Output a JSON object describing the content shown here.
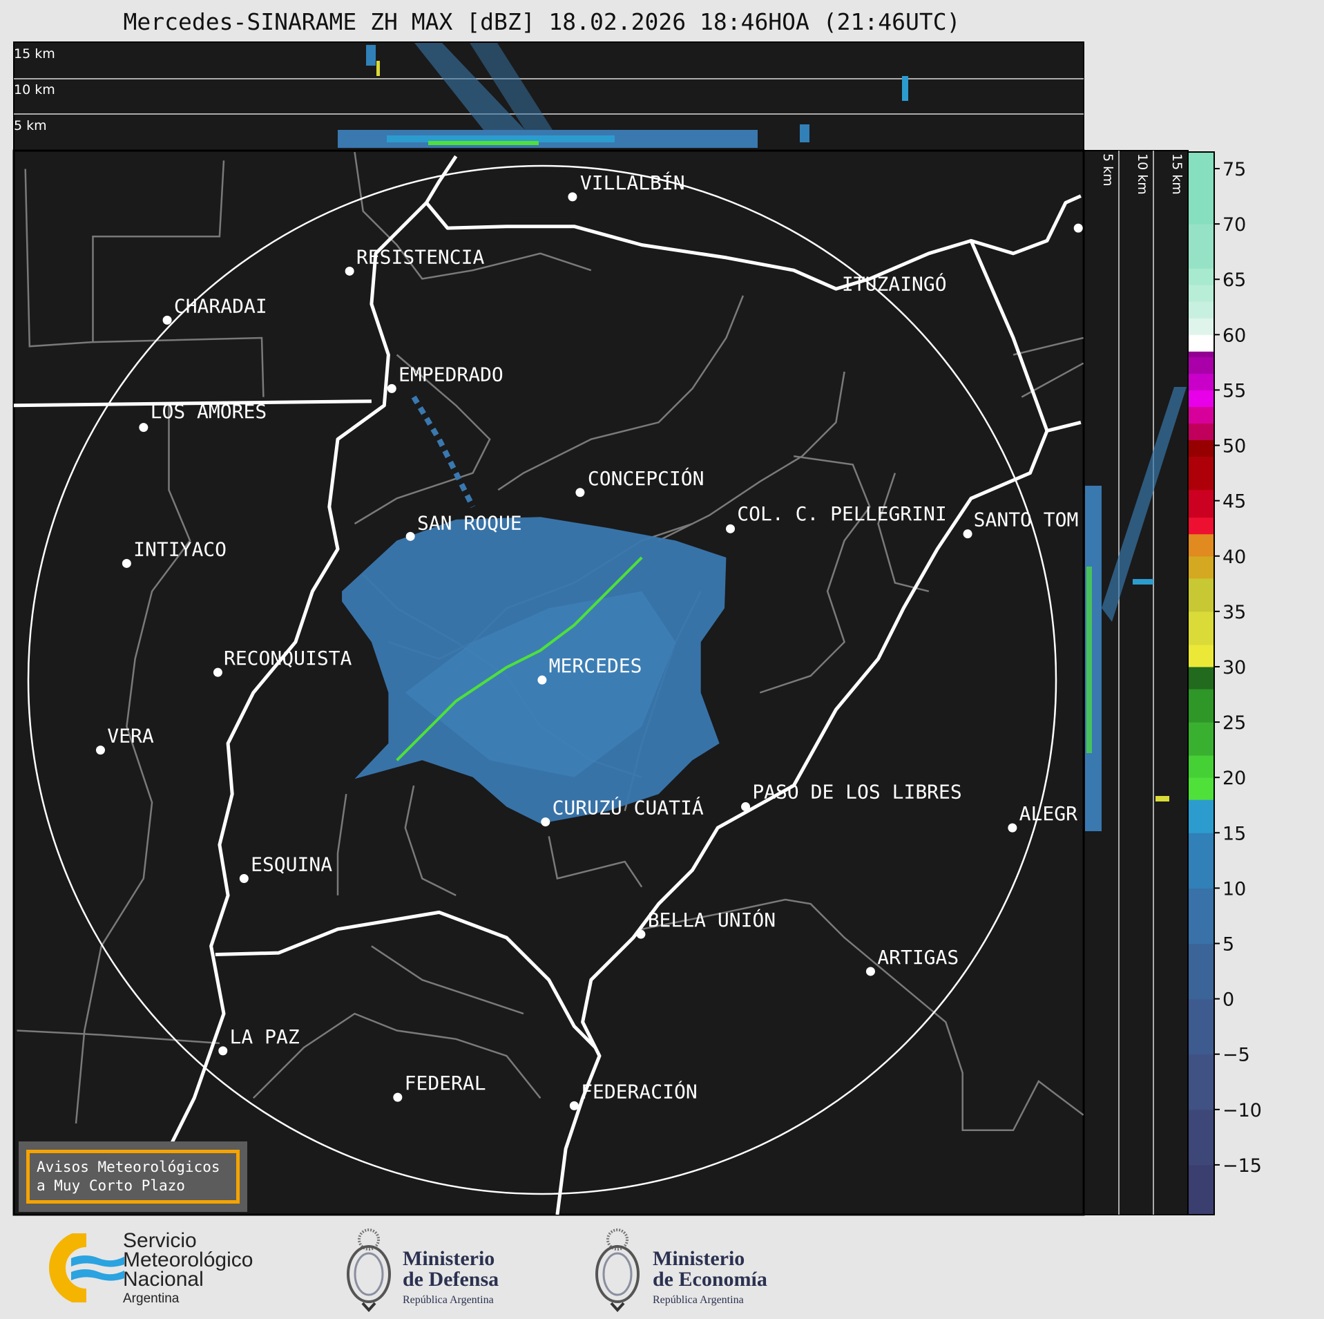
{
  "title": "Mercedes-SINARAME ZH MAX [dBZ] 18.02.2026 18:46HOA (21:46UTC)",
  "top_profile": {
    "labels": [
      "15 km",
      "10 km",
      "5 km"
    ]
  },
  "side_profile": {
    "labels": [
      "5 km",
      "10 km",
      "15 km"
    ]
  },
  "cities": [
    "VILLALBÍN",
    "RESISTENCIA",
    "CHARADAI",
    "ITUZAINGÓ",
    "EMPEDRADO",
    "LOS AMORES",
    "CONCEPCIÓN",
    "SAN ROQUE",
    "COL. C. PELLEGRINI",
    "SANTO TOM",
    "INTIYACO",
    "RECONQUISTA",
    "MERCEDES",
    "VERA",
    "PASO DE LOS LIBRES",
    "CURUZÚ CUATIÁ",
    "ALEGR",
    "ESQUINA",
    "BELLA UNIÓN",
    "ARTIGAS",
    "LA PAZ",
    "FEDERAL",
    "FEDERACIÓN"
  ],
  "colorbar": {
    "unit": "dBZ",
    "range": [
      -19.5,
      76.5
    ],
    "ticks": [
      -15,
      -10,
      -5,
      0,
      5,
      10,
      15,
      20,
      25,
      30,
      35,
      40,
      45,
      50,
      55,
      60,
      65,
      70,
      75
    ],
    "tick_labels": [
      "−15",
      "−10",
      "−5",
      "0",
      "5",
      "10",
      "15",
      "20",
      "25",
      "30",
      "35",
      "40",
      "45",
      "50",
      "55",
      "60",
      "65",
      "70",
      "75"
    ],
    "bands": [
      [
        -19.5,
        -15,
        "#3b3f6f"
      ],
      [
        -15,
        -10,
        "#3e4878"
      ],
      [
        -10,
        -5,
        "#405183"
      ],
      [
        -5,
        0,
        "#3e5b8f"
      ],
      [
        0,
        5,
        "#3b6599"
      ],
      [
        5,
        10,
        "#3872a8"
      ],
      [
        10,
        15,
        "#3180b8"
      ],
      [
        15,
        18,
        "#2c9ccf"
      ],
      [
        18,
        20,
        "#4fe03a"
      ],
      [
        20,
        22,
        "#45d035"
      ],
      [
        22,
        25,
        "#3ab030"
      ],
      [
        25,
        28,
        "#2f9628"
      ],
      [
        28,
        30,
        "#226a1e"
      ],
      [
        30,
        32,
        "#ece838"
      ],
      [
        32,
        35,
        "#dada38"
      ],
      [
        35,
        38,
        "#c8c834"
      ],
      [
        38,
        40,
        "#d4a820"
      ],
      [
        40,
        42,
        "#e08a20"
      ],
      [
        42,
        43.5,
        "#ee1030"
      ],
      [
        43.5,
        46,
        "#cc0020"
      ],
      [
        46,
        49,
        "#ae0008"
      ],
      [
        49,
        50.5,
        "#960000"
      ],
      [
        50.5,
        52,
        "#c0005a"
      ],
      [
        52,
        53.5,
        "#d8009a"
      ],
      [
        53.5,
        55,
        "#e800e8"
      ],
      [
        55,
        56.5,
        "#c800c8"
      ],
      [
        56.5,
        58,
        "#aa00aa"
      ],
      [
        58,
        58.5,
        "#920092"
      ],
      [
        58.5,
        60,
        "#ffffff"
      ],
      [
        60,
        61.5,
        "#dff5ec"
      ],
      [
        61.5,
        63,
        "#c8f0e0"
      ],
      [
        63,
        64.5,
        "#b8eed8"
      ],
      [
        64.5,
        66,
        "#a8eacf"
      ],
      [
        66,
        70,
        "#96e2c6"
      ],
      [
        70,
        76.5,
        "#86dfbe"
      ]
    ]
  },
  "warning_box": {
    "line1": "Avisos Meteorológicos",
    "line2": "a Muy Corto Plazo",
    "border_color": "#f5a300"
  },
  "logos": {
    "smn": {
      "lines": [
        "Servicio",
        "Meteorológico",
        "Nacional"
      ],
      "country": "Argentina"
    },
    "defensa": {
      "line1": "Ministerio",
      "line2": "de Defensa",
      "sub": "República Argentina"
    },
    "economia": {
      "line1": "Ministerio",
      "line2": "de Economía",
      "sub": "República Argentina"
    }
  },
  "colors": {
    "background": "#1a1a1a",
    "border_major": "#ffffff",
    "border_province": "#808080",
    "echo": "#3a78b0",
    "echo_strong": "#4fe03a"
  }
}
